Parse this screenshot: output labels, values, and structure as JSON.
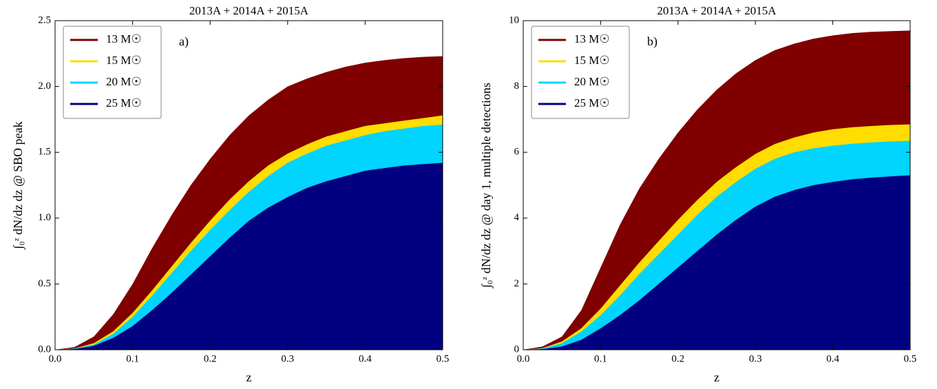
{
  "chart_data": [
    {
      "type": "area",
      "title": "2013A + 2014A + 2015A",
      "annotation": "a)",
      "x_label": "z",
      "y_label": "∫₀ᶻ dN/dz dz @ SBO peak",
      "legend": "upper left",
      "x": [
        0,
        0.025,
        0.05,
        0.075,
        0.1,
        0.125,
        0.15,
        0.175,
        0.2,
        0.225,
        0.25,
        0.275,
        0.3,
        0.325,
        0.35,
        0.375,
        0.4,
        0.425,
        0.45,
        0.475,
        0.5
      ],
      "series": [
        {
          "name": "13 M☉",
          "color": "#800000",
          "values": [
            0,
            0.02,
            0.1,
            0.27,
            0.5,
            0.77,
            1.02,
            1.25,
            1.45,
            1.63,
            1.78,
            1.9,
            2.0,
            2.06,
            2.11,
            2.15,
            2.18,
            2.2,
            2.215,
            2.225,
            2.23
          ]
        },
        {
          "name": "15 M☉",
          "color": "#ffdd00",
          "values": [
            0,
            0.01,
            0.05,
            0.14,
            0.28,
            0.45,
            0.63,
            0.81,
            0.98,
            1.14,
            1.28,
            1.4,
            1.49,
            1.56,
            1.62,
            1.66,
            1.7,
            1.72,
            1.74,
            1.76,
            1.78
          ]
        },
        {
          "name": "20 M☉",
          "color": "#00d4ff",
          "values": [
            0,
            0.01,
            0.04,
            0.12,
            0.25,
            0.41,
            0.58,
            0.75,
            0.91,
            1.06,
            1.2,
            1.32,
            1.42,
            1.49,
            1.55,
            1.59,
            1.63,
            1.66,
            1.68,
            1.7,
            1.71
          ]
        },
        {
          "name": "25 M☉",
          "color": "#000080",
          "values": [
            0,
            0.005,
            0.03,
            0.09,
            0.18,
            0.3,
            0.43,
            0.57,
            0.71,
            0.85,
            0.98,
            1.08,
            1.16,
            1.23,
            1.28,
            1.32,
            1.36,
            1.38,
            1.4,
            1.41,
            1.42
          ]
        }
      ],
      "xlim": [
        0,
        0.5
      ],
      "ylim": [
        0,
        2.5
      ],
      "xticks": [
        {
          "value": 0,
          "label": "0.0"
        },
        0.1,
        0.2,
        0.3,
        0.4,
        0.5
      ],
      "yticks": [
        {
          "value": 0,
          "label": "0.0"
        },
        0.5,
        {
          "value": 1,
          "label": "1.0"
        },
        1.5,
        {
          "value": 2,
          "label": "2.0"
        },
        2.5
      ]
    },
    {
      "type": "area",
      "title": "2013A + 2014A + 2015A",
      "annotation": "b)",
      "x_label": "z",
      "y_label": "∫₀ᶻ dN/dz dz @ day 1, multiple detections",
      "legend": "upper left",
      "x": [
        0,
        0.025,
        0.05,
        0.075,
        0.1,
        0.125,
        0.15,
        0.175,
        0.2,
        0.225,
        0.25,
        0.275,
        0.3,
        0.325,
        0.35,
        0.375,
        0.4,
        0.425,
        0.45,
        0.475,
        0.5
      ],
      "series": [
        {
          "name": "13 M☉",
          "color": "#800000",
          "values": [
            0,
            0.1,
            0.4,
            1.2,
            2.5,
            3.8,
            4.9,
            5.8,
            6.6,
            7.3,
            7.9,
            8.4,
            8.8,
            9.1,
            9.3,
            9.45,
            9.55,
            9.62,
            9.66,
            9.68,
            9.7
          ]
        },
        {
          "name": "15 M☉",
          "color": "#ffdd00",
          "values": [
            0,
            0.05,
            0.25,
            0.65,
            1.25,
            1.95,
            2.65,
            3.3,
            3.95,
            4.55,
            5.1,
            5.55,
            5.95,
            6.25,
            6.45,
            6.6,
            6.7,
            6.76,
            6.8,
            6.83,
            6.85
          ]
        },
        {
          "name": "20 M☉",
          "color": "#00d4ff",
          "values": [
            0,
            0.04,
            0.2,
            0.55,
            1.05,
            1.65,
            2.3,
            2.9,
            3.5,
            4.1,
            4.65,
            5.1,
            5.5,
            5.8,
            6.0,
            6.12,
            6.2,
            6.26,
            6.3,
            6.33,
            6.35
          ]
        },
        {
          "name": "25 M☉",
          "color": "#000080",
          "values": [
            0,
            0.02,
            0.1,
            0.3,
            0.65,
            1.05,
            1.5,
            2.0,
            2.5,
            3.0,
            3.5,
            3.95,
            4.35,
            4.65,
            4.85,
            5.0,
            5.1,
            5.18,
            5.23,
            5.27,
            5.3
          ]
        }
      ],
      "xlim": [
        0,
        0.5
      ],
      "ylim": [
        0,
        10
      ],
      "xticks": [
        {
          "value": 0,
          "label": "0.0"
        },
        0.1,
        0.2,
        0.3,
        0.4,
        0.5
      ],
      "yticks": [
        0,
        2,
        4,
        6,
        8,
        10
      ]
    }
  ]
}
